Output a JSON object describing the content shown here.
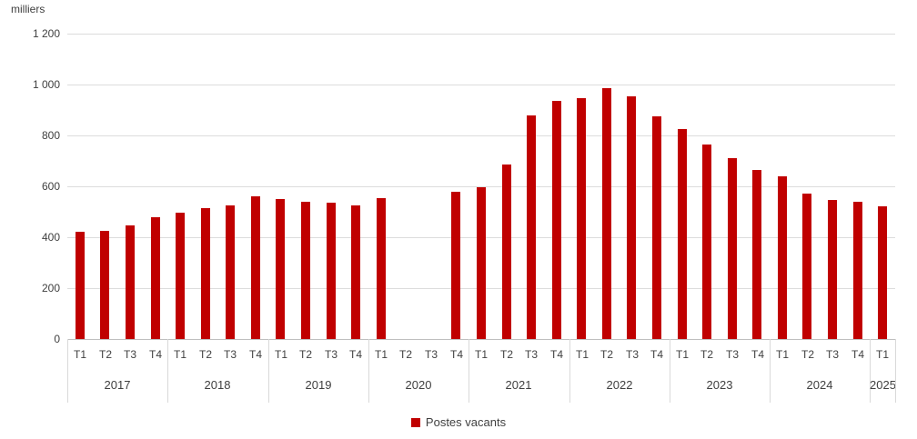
{
  "unit_label": "milliers",
  "legend": {
    "label": "Postes vacants",
    "color": "#C00000"
  },
  "colors": {
    "bar": "#C00000",
    "gridline": "#dcdcdc",
    "axis_line": "#bfbfbf",
    "separator": "#d9d9d9",
    "text": "#404040",
    "background": "#ffffff"
  },
  "chart_data": {
    "type": "bar",
    "title": "",
    "ylabel": "milliers",
    "xlabel": "",
    "ylim": [
      0,
      1200
    ],
    "ytick_step": 200,
    "ytick_labels": [
      "0",
      "200",
      "400",
      "600",
      "800",
      "1 000",
      "1 200"
    ],
    "grid": true,
    "legend_position": "bottom-center",
    "bar_color": "#C00000",
    "missing_data_note": "no bars for 2020 T2 and 2020 T3",
    "years": [
      {
        "year": "2017",
        "quarters": [
          "T1",
          "T2",
          "T3",
          "T4"
        ],
        "values": [
          420,
          425,
          445,
          480
        ]
      },
      {
        "year": "2018",
        "quarters": [
          "T1",
          "T2",
          "T3",
          "T4"
        ],
        "values": [
          495,
          515,
          525,
          560
        ]
      },
      {
        "year": "2019",
        "quarters": [
          "T1",
          "T2",
          "T3",
          "T4"
        ],
        "values": [
          550,
          540,
          535,
          525
        ]
      },
      {
        "year": "2020",
        "quarters": [
          "T1",
          "T2",
          "T3",
          "T4"
        ],
        "values": [
          555,
          null,
          null,
          580
        ]
      },
      {
        "year": "2021",
        "quarters": [
          "T1",
          "T2",
          "T3",
          "T4"
        ],
        "values": [
          595,
          685,
          880,
          935
        ]
      },
      {
        "year": "2022",
        "quarters": [
          "T1",
          "T2",
          "T3",
          "T4"
        ],
        "values": [
          945,
          985,
          955,
          875
        ]
      },
      {
        "year": "2023",
        "quarters": [
          "T1",
          "T2",
          "T3",
          "T4"
        ],
        "values": [
          825,
          765,
          710,
          665
        ]
      },
      {
        "year": "2024",
        "quarters": [
          "T1",
          "T2",
          "T3",
          "T4"
        ],
        "values": [
          640,
          570,
          545,
          540
        ]
      },
      {
        "year": "2025",
        "quarters": [
          "T1"
        ],
        "values": [
          520
        ]
      }
    ],
    "series": [
      {
        "name": "Postes vacants",
        "values": [
          420,
          425,
          445,
          480,
          495,
          515,
          525,
          560,
          550,
          540,
          535,
          525,
          555,
          null,
          null,
          580,
          595,
          685,
          880,
          935,
          945,
          985,
          955,
          875,
          825,
          765,
          710,
          665,
          640,
          570,
          545,
          540,
          520
        ]
      }
    ]
  }
}
